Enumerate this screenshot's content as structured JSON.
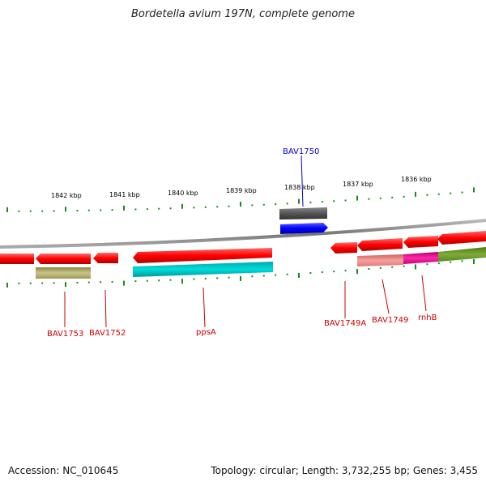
{
  "title": "Bordetella avium 197N, complete genome",
  "footer": {
    "accession": "Accession: NC_010645",
    "stats": "Topology: circular; Length: 3,732,255 bp; Genes: 3,455"
  },
  "ruler_labels": [
    "1842 kbp",
    "1841 kbp",
    "1840 kbp",
    "1839 kbp",
    "1838 kbp",
    "1837 kbp",
    "1836 kbp"
  ],
  "genes": [
    {
      "name": "BAV1753",
      "strand": "minus",
      "color": "#dd0000"
    },
    {
      "name": "BAV1752",
      "strand": "minus",
      "color": "#dd0000"
    },
    {
      "name": "ppsA",
      "strand": "minus",
      "color": "#dd0000"
    },
    {
      "name": "BAV1750",
      "strand": "plus",
      "color": "#0000cc"
    },
    {
      "name": "BAV1749A",
      "strand": "minus",
      "color": "#dd0000"
    },
    {
      "name": "BAV1749",
      "strand": "minus",
      "color": "#dd0000"
    },
    {
      "name": "rnhB",
      "strand": "minus",
      "color": "#dd0000"
    }
  ],
  "colors": {
    "cds": "#e00000",
    "plus_cds": "#0000ee",
    "backbone": "#888888",
    "tick": "#1a8a1a",
    "cog_olive": "#b5b070",
    "cog_cyan": "#00c8c8",
    "cog_gray": "#666666",
    "cog_pink": "#f08080",
    "cog_magenta": "#e0108a",
    "cog_green": "#6a9a2a"
  }
}
